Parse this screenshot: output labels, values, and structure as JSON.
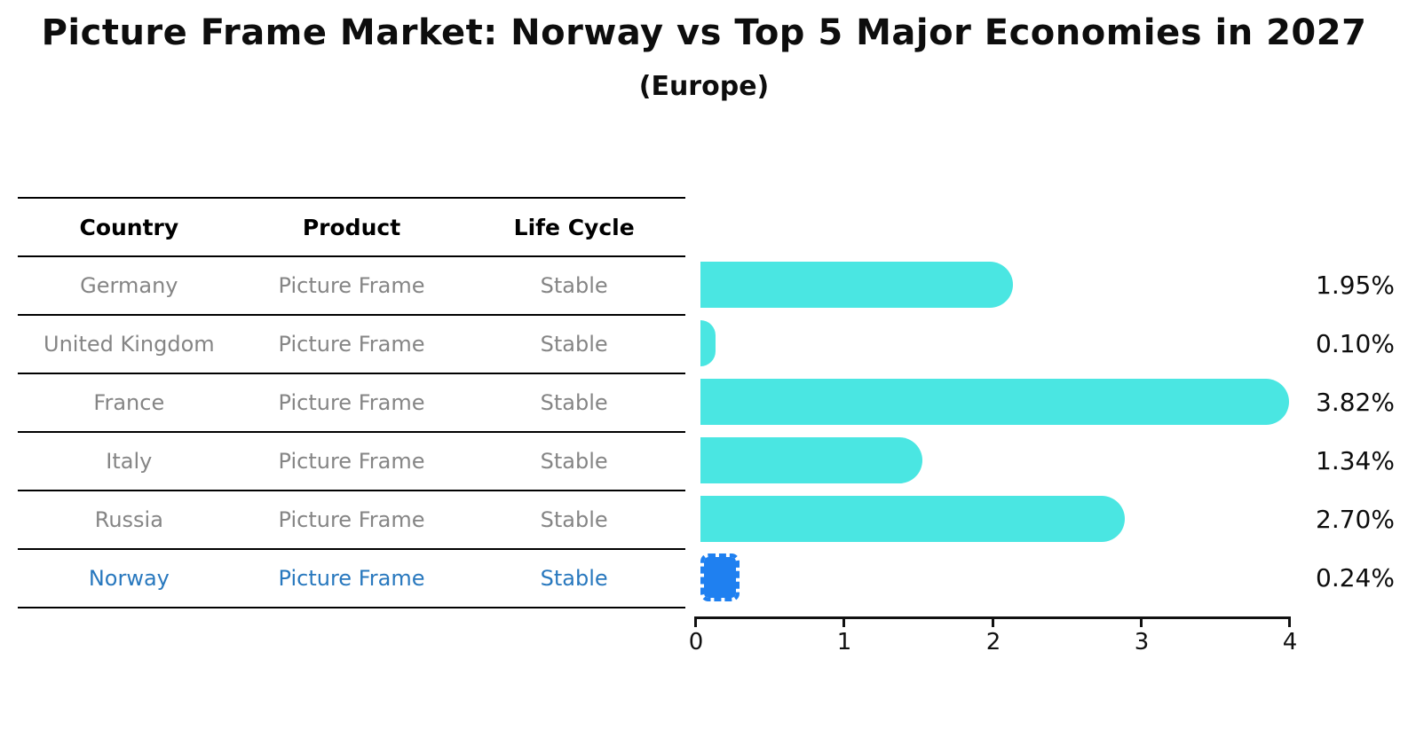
{
  "title": "Picture Frame Market: Norway vs Top 5 Major Economies in 2027",
  "subtitle": "(Europe)",
  "table": {
    "headers": [
      "Country",
      "Product",
      "Life Cycle"
    ],
    "rows": [
      {
        "country": "Germany",
        "product": "Picture Frame",
        "life_cycle": "Stable",
        "highlight": false
      },
      {
        "country": "United Kingdom",
        "product": "Picture Frame",
        "life_cycle": "Stable",
        "highlight": false
      },
      {
        "country": "France",
        "product": "Picture Frame",
        "life_cycle": "Stable",
        "highlight": false
      },
      {
        "country": "Italy",
        "product": "Picture Frame",
        "life_cycle": "Stable",
        "highlight": false
      },
      {
        "country": "Russia",
        "product": "Picture Frame",
        "life_cycle": "Stable",
        "highlight": true
      },
      {
        "country": "Norway",
        "product": "Picture Frame",
        "life_cycle": "Stable",
        "highlight": true
      }
    ]
  },
  "chart_data": {
    "type": "bar",
    "orientation": "horizontal",
    "title": "Picture Frame Market: Norway vs Top 5 Major Economies in 2027",
    "subtitle": "(Europe)",
    "categories": [
      "Germany",
      "United Kingdom",
      "France",
      "Italy",
      "Russia",
      "Norway"
    ],
    "values": [
      1.95,
      0.1,
      3.82,
      1.34,
      2.7,
      0.24
    ],
    "value_labels": [
      "1.95%",
      "0.10%",
      "3.82%",
      "1.34%",
      "2.70%",
      "0.24%"
    ],
    "xlabel": "",
    "ylabel": "",
    "xlim": [
      0,
      4
    ],
    "xticks": [
      "0",
      "1",
      "2",
      "3",
      "4"
    ],
    "grid": false,
    "legend": false,
    "highlight_index": 5
  },
  "colors": {
    "background": "#ffffff",
    "bar_color": "#4ae6e2",
    "highlight_bar_color": "#1f80f0",
    "highlight_text_color": "#2878be",
    "row_text": "#858585",
    "header_text": "#000000",
    "axis_line": "#111111",
    "annotation_text": "#0d0d0d"
  }
}
